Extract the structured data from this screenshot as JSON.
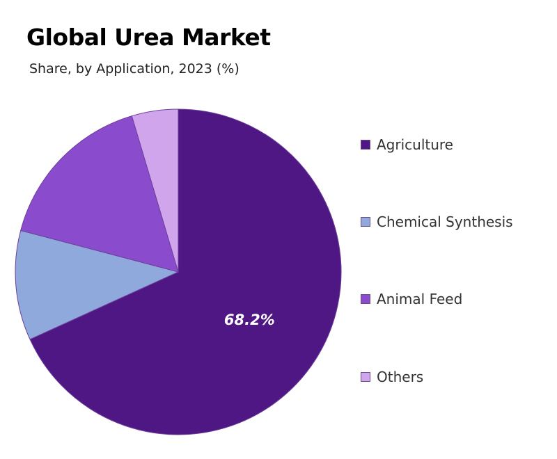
{
  "chart_data": {
    "type": "pie",
    "title": "Global Urea Market",
    "subtitle": "Share, by Application, 2023 (%)",
    "categories": [
      "Agriculture",
      "Chemical Synthesis",
      "Animal Feed",
      "Others"
    ],
    "values": [
      68.2,
      10.9,
      16.3,
      4.6
    ],
    "colors": [
      "#4f1783",
      "#8fa9dc",
      "#8a4ccc",
      "#d1a5ec"
    ],
    "data_labels": [
      "68.2%",
      "",
      "",
      ""
    ],
    "start_angle": "12 o'clock",
    "direction": "clockwise",
    "legend_position": "right"
  }
}
